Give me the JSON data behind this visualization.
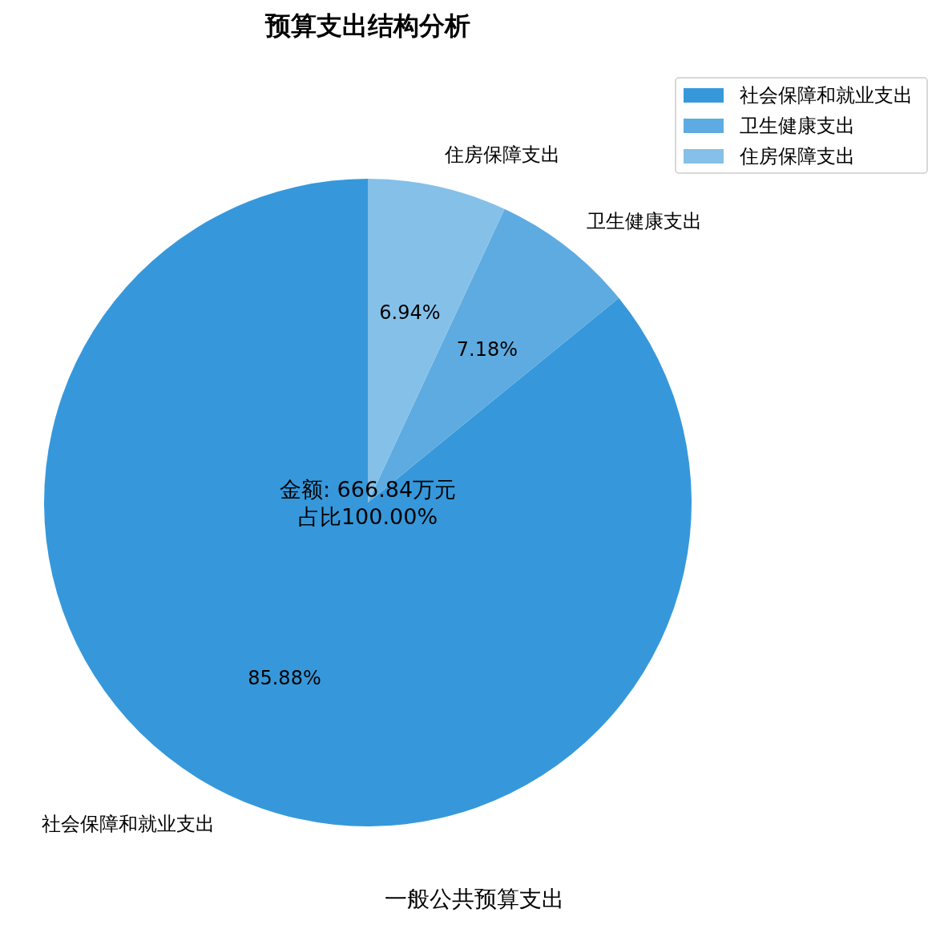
{
  "chart_data": {
    "type": "pie",
    "title": "预算支出结构分析",
    "xlabel": "一般公共预算支出",
    "categories": [
      "社会保障和就业支出",
      "卫生健康支出",
      "住房保障支出"
    ],
    "values": [
      85.88,
      7.18,
      6.94
    ],
    "colors": [
      "#3698db",
      "#5dabe0",
      "#85c0e8"
    ],
    "value_labels": [
      "85.88%",
      "7.18%",
      "6.94%"
    ],
    "annotations": [
      "金额: 666.84万元",
      "占比100.00%"
    ],
    "legend": "top right"
  }
}
